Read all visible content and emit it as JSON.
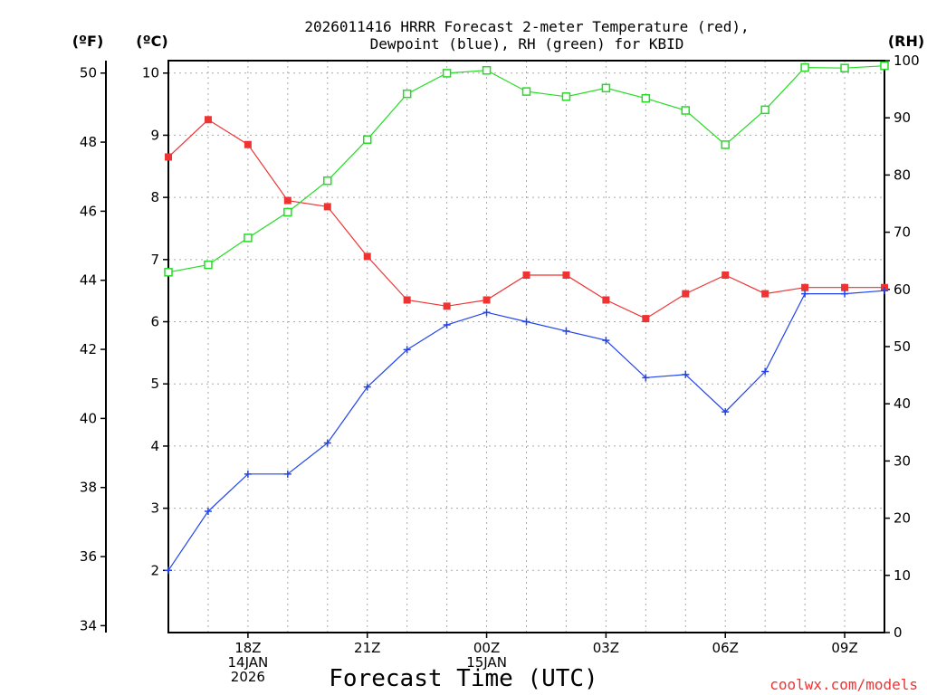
{
  "chart_data": {
    "type": "line",
    "title": [
      "2026011416 HRRR Forecast 2-meter Temperature (red),",
      "Dewpoint (blue), RH (green) for KBID"
    ],
    "xlabel": "Forecast Time (UTC)",
    "credit": "coolwx.com/models",
    "x_hours": [
      0,
      1,
      2,
      3,
      4,
      5,
      6,
      7,
      8,
      9,
      10,
      11,
      12,
      13,
      14,
      15,
      16,
      17,
      18
    ],
    "x_range": [
      0,
      18
    ],
    "x_ticks": [
      {
        "hour": 2,
        "lines": [
          "18Z",
          "14JAN",
          "2026"
        ]
      },
      {
        "hour": 5,
        "lines": [
          "21Z"
        ]
      },
      {
        "hour": 8,
        "lines": [
          "00Z",
          "15JAN"
        ]
      },
      {
        "hour": 11,
        "lines": [
          "03Z"
        ]
      },
      {
        "hour": 14,
        "lines": [
          "06Z"
        ]
      },
      {
        "hour": 17,
        "lines": [
          "09Z"
        ]
      }
    ],
    "left_axis_c": {
      "label": "(ºC)",
      "range": [
        1,
        10.2
      ],
      "ticks": [
        2,
        3,
        4,
        5,
        6,
        7,
        8,
        9,
        10
      ]
    },
    "left_axis_f": {
      "label": "(ºF)",
      "ticks": [
        34,
        36,
        38,
        40,
        42,
        44,
        46,
        48,
        50
      ]
    },
    "right_axis_rh": {
      "label": "(RH)",
      "range": [
        0,
        100
      ],
      "ticks": [
        0,
        10,
        20,
        30,
        40,
        50,
        60,
        70,
        80,
        90,
        100
      ]
    },
    "series": [
      {
        "name": "Temperature",
        "axis": "c",
        "color": "#ee3333",
        "marker": "filled-square",
        "values": [
          8.65,
          9.25,
          8.85,
          7.95,
          7.85,
          7.05,
          6.35,
          6.25,
          6.35,
          6.75,
          6.75,
          6.35,
          6.05,
          6.45,
          6.75,
          6.45,
          6.55,
          6.55,
          6.55
        ]
      },
      {
        "name": "Dewpoint",
        "axis": "c",
        "color": "#2244ee",
        "marker": "plus",
        "values": [
          2.0,
          2.95,
          3.55,
          3.55,
          4.05,
          4.95,
          5.55,
          5.95,
          6.15,
          6.0,
          5.85,
          5.7,
          5.1,
          5.15,
          4.55,
          5.2,
          6.45,
          6.45,
          6.5
        ]
      },
      {
        "name": "RH",
        "axis": "rh",
        "color": "#22dd22",
        "marker": "open-square",
        "values": [
          63,
          64.3,
          69,
          73.5,
          79,
          86.2,
          94.2,
          97.8,
          98.3,
          94.6,
          93.7,
          95.2,
          93.4,
          91.3,
          85.3,
          91.4,
          98.8,
          98.7,
          99.1
        ]
      }
    ]
  }
}
